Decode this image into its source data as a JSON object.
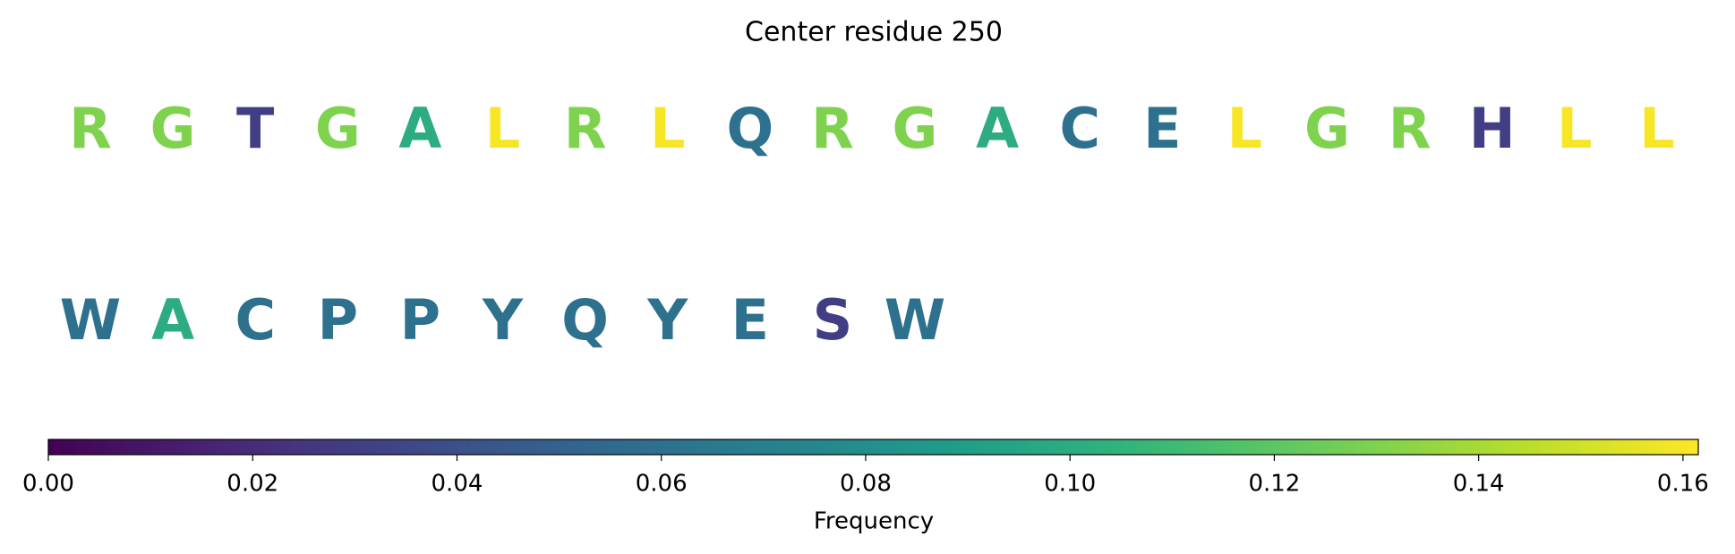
{
  "chart_data": {
    "type": "letters",
    "title": "Center residue 250",
    "categories": [
      "R",
      "G",
      "T",
      "G",
      "A",
      "L",
      "R",
      "L",
      "Q",
      "R",
      "G",
      "A",
      "C",
      "E",
      "L",
      "G",
      "R",
      "H",
      "L",
      "L",
      "W",
      "A",
      "C",
      "P",
      "P",
      "Y",
      "Q",
      "Y",
      "E",
      "S",
      "W"
    ],
    "values": [
      0.13,
      0.13,
      0.03,
      0.13,
      0.1,
      0.16,
      0.13,
      0.16,
      0.06,
      0.13,
      0.13,
      0.1,
      0.06,
      0.06,
      0.16,
      0.13,
      0.13,
      0.03,
      0.16,
      0.16,
      0.06,
      0.1,
      0.06,
      0.06,
      0.06,
      0.06,
      0.06,
      0.06,
      0.06,
      0.03,
      0.06
    ],
    "colormap": "viridis",
    "clim": [
      0,
      0.1615
    ],
    "cticks": [
      {
        "value": 0,
        "label": "0.00"
      },
      0.02,
      0.04,
      0.06,
      0.08,
      {
        "value": 0.1,
        "label": "0.10"
      },
      0.12,
      0.14,
      0.16
    ],
    "clabel": "Frequency"
  }
}
